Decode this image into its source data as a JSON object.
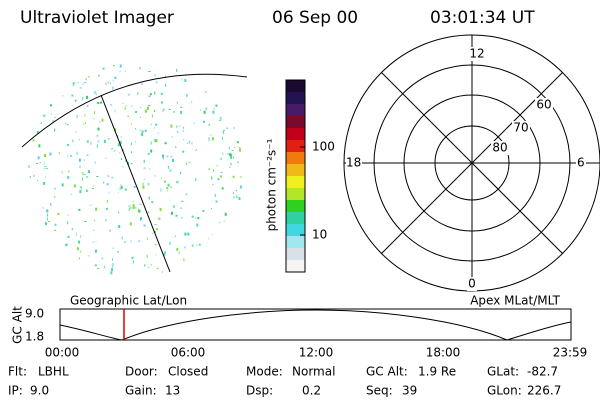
{
  "header": {
    "instrument": "Ultraviolet Imager",
    "date": "06 Sep 00",
    "time": "03:01:34 UT"
  },
  "colorbar": {
    "label": "photon cm⁻²s⁻¹",
    "ticks": [
      "100",
      "10"
    ]
  },
  "polar": {
    "mlt_labels": [
      "12",
      "18",
      "6",
      "0"
    ],
    "lat_labels": [
      "60",
      "70",
      "80"
    ]
  },
  "timeline": {
    "left_label": "Geographic Lat/Lon",
    "right_label": "Apex MLat/MLT",
    "axis_title": "GC Alt",
    "y_labels": [
      "9.0",
      "1.8"
    ],
    "time_labels": [
      "00:00",
      "06:00",
      "12:00",
      "18:00",
      "23:59"
    ]
  },
  "info": [
    [
      {
        "label": "Flt:",
        "value": "LBHL"
      },
      {
        "label": "Door:",
        "value": "Closed"
      },
      {
        "label": "Mode:",
        "value": "Normal"
      },
      {
        "label": "GC Alt:",
        "value": "1.9 Re"
      },
      {
        "label": "GLat:",
        "value": "-82.7"
      }
    ],
    [
      {
        "label": "IP:",
        "value": "9.0"
      },
      {
        "label": "Gain:",
        "value": "13"
      },
      {
        "label": "Dsp:",
        "value": "0.2"
      },
      {
        "label": "Seq:",
        "value": "39"
      },
      {
        "label": "GLon:",
        "value": "226.7"
      }
    ]
  ]
}
